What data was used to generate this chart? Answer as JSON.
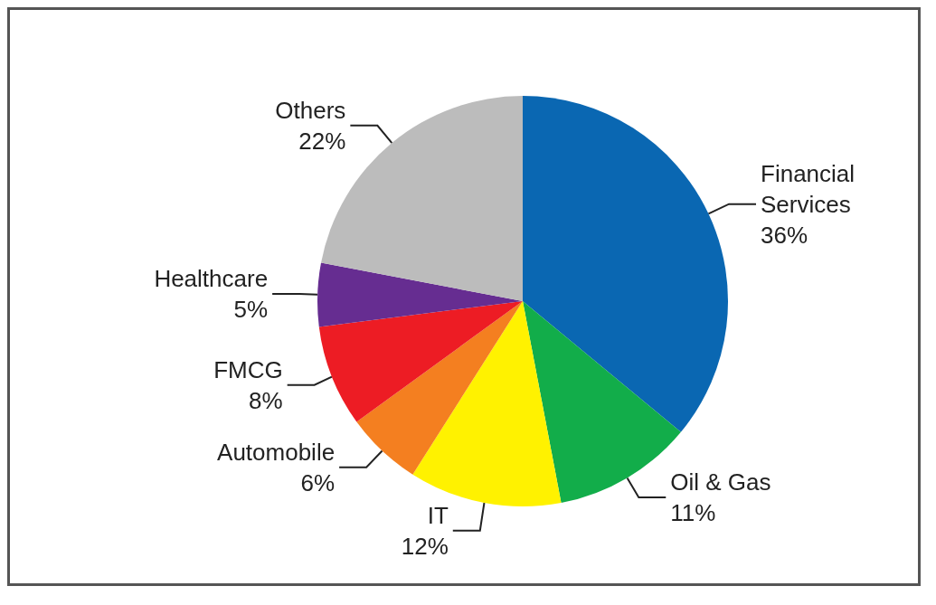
{
  "chart_data": {
    "type": "pie",
    "categories": [
      "Financial Services",
      "Oil & Gas",
      "IT",
      "Automobile",
      "FMCG",
      "Healthcare",
      "Others"
    ],
    "values": [
      36,
      11,
      12,
      6,
      8,
      5,
      22
    ],
    "value_labels": [
      "36%",
      "11%",
      "12%",
      "6%",
      "8%",
      "5%",
      "22%"
    ],
    "colors": [
      "#0a67b2",
      "#12ad4a",
      "#fff200",
      "#f47f20",
      "#ed1c24",
      "#662d91",
      "#bcbcbc"
    ],
    "legend": false
  }
}
